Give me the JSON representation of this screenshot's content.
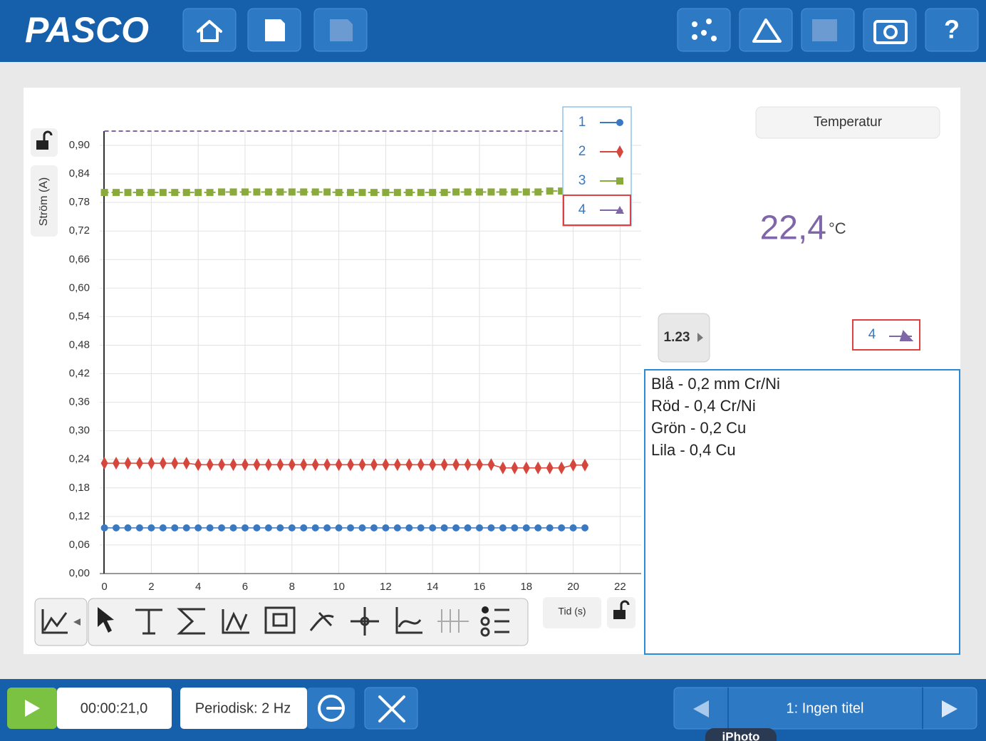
{
  "header": {
    "logo": "PASCO",
    "help": "?"
  },
  "chart_data": {
    "type": "line",
    "y_label": "Ström (A)",
    "x_label": "Tid (s)",
    "x": [
      0,
      0.5,
      1,
      1.5,
      2,
      2.5,
      3,
      3.5,
      4,
      4.5,
      5,
      5.5,
      6,
      6.5,
      7,
      7.5,
      8,
      8.5,
      9,
      9.5,
      10,
      10.5,
      11,
      11.5,
      12,
      12.5,
      13,
      13.5,
      14,
      14.5,
      15,
      15.5,
      16,
      16.5,
      17,
      17.5,
      18,
      18.5,
      19,
      19.5,
      20,
      20.5
    ],
    "series": [
      {
        "name": "1",
        "color": "#3a78c0",
        "marker": "circle",
        "dash": false,
        "values": [
          0.096,
          0.096,
          0.096,
          0.096,
          0.096,
          0.096,
          0.096,
          0.096,
          0.096,
          0.096,
          0.096,
          0.096,
          0.096,
          0.096,
          0.096,
          0.096,
          0.096,
          0.096,
          0.096,
          0.096,
          0.096,
          0.096,
          0.096,
          0.096,
          0.096,
          0.096,
          0.096,
          0.096,
          0.096,
          0.096,
          0.096,
          0.096,
          0.096,
          0.096,
          0.096,
          0.096,
          0.096,
          0.096,
          0.096,
          0.096,
          0.096,
          0.096
        ]
      },
      {
        "name": "2",
        "color": "#d5473c",
        "marker": "diamond",
        "dash": false,
        "values": [
          0.232,
          0.232,
          0.232,
          0.232,
          0.232,
          0.232,
          0.232,
          0.232,
          0.229,
          0.229,
          0.229,
          0.229,
          0.229,
          0.229,
          0.229,
          0.229,
          0.229,
          0.229,
          0.229,
          0.229,
          0.229,
          0.229,
          0.229,
          0.229,
          0.229,
          0.229,
          0.229,
          0.229,
          0.229,
          0.229,
          0.229,
          0.229,
          0.229,
          0.229,
          0.222,
          0.222,
          0.222,
          0.222,
          0.222,
          0.222,
          0.228,
          0.228
        ]
      },
      {
        "name": "3",
        "color": "#8aab3c",
        "marker": "square",
        "dash": true,
        "values": [
          0.801,
          0.801,
          0.801,
          0.801,
          0.801,
          0.801,
          0.801,
          0.801,
          0.801,
          0.801,
          0.802,
          0.802,
          0.802,
          0.802,
          0.802,
          0.802,
          0.802,
          0.802,
          0.802,
          0.802,
          0.801,
          0.801,
          0.801,
          0.801,
          0.801,
          0.801,
          0.801,
          0.801,
          0.801,
          0.801,
          0.802,
          0.802,
          0.802,
          0.802,
          0.802,
          0.802,
          0.802,
          0.802,
          0.804,
          0.804,
          0.804,
          0.804
        ]
      },
      {
        "name": "4",
        "color": "#7f66a8",
        "marker": "triangle",
        "dash": true,
        "hide_markers": true,
        "values": [
          0.93,
          0.93,
          0.93,
          0.93,
          0.93,
          0.93,
          0.93,
          0.93,
          0.93,
          0.93,
          0.93,
          0.93,
          0.93,
          0.93,
          0.93,
          0.93,
          0.93,
          0.93,
          0.93,
          0.93,
          0.93,
          0.93,
          0.93,
          0.93,
          0.93,
          0.93,
          0.93,
          0.93,
          0.93,
          0.93,
          0.93,
          0.93,
          0.93,
          0.93,
          0.93,
          0.93,
          0.93,
          0.93,
          0.93,
          0.93,
          0.93,
          0.93
        ]
      }
    ],
    "xlim": [
      -0.2,
      22.9
    ],
    "ylim": [
      0,
      0.93
    ],
    "xticks": [
      0,
      2,
      4,
      6,
      8,
      10,
      12,
      14,
      16,
      18,
      20,
      22
    ],
    "yticks": [
      {
        "value": 0,
        "label": "0,00"
      },
      {
        "value": 0.06,
        "label": "0,06"
      },
      {
        "value": 0.12,
        "label": "0,12"
      },
      {
        "value": 0.18,
        "label": "0,18"
      },
      {
        "value": 0.24,
        "label": "0,24"
      },
      {
        "value": 0.3,
        "label": "0,30"
      },
      {
        "value": 0.36,
        "label": "0,36"
      },
      {
        "value": 0.42,
        "label": "0,42"
      },
      {
        "value": 0.48,
        "label": "0,48"
      },
      {
        "value": 0.54,
        "label": "0,54"
      },
      {
        "value": 0.6,
        "label": "0,60"
      },
      {
        "value": 0.66,
        "label": "0,66"
      },
      {
        "value": 0.72,
        "label": "0,72"
      },
      {
        "value": 0.78,
        "label": "0,78"
      },
      {
        "value": 0.84,
        "label": "0,84"
      },
      {
        "value": 0.9,
        "label": "0,90"
      }
    ],
    "grid": true,
    "legend": "top-right",
    "selected_series": 3
  },
  "meter": {
    "title": "Temperatur",
    "value": "22,4",
    "unit": "°C",
    "digits_button": "1.23",
    "series": "4"
  },
  "notes": [
    "Blå - 0,2 mm Cr/Ni",
    "Röd - 0,4 Cr/Ni",
    "Grön - 0,2 Cu",
    "Lila - 0,4 Cu"
  ],
  "footer": {
    "time": "00:00:21,0",
    "sampling": "Periodisk: 2 Hz",
    "page": "1: Ingen titel",
    "tab": "iPhoto"
  }
}
